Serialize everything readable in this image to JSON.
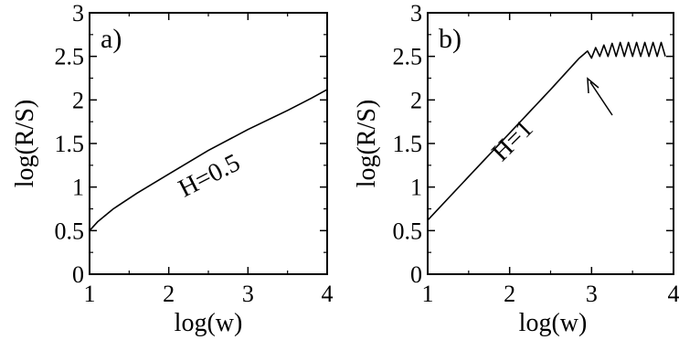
{
  "chart_data": [
    {
      "type": "line",
      "panel_label": "a)",
      "xlabel": "log(w)",
      "ylabel": "log(R/S)",
      "xlim": [
        1,
        4
      ],
      "ylim": [
        0,
        3
      ],
      "xticks": [
        "1",
        "2",
        "3",
        "4"
      ],
      "yticks": [
        "0",
        "0.5",
        "1",
        "1.5",
        "2",
        "2.5",
        "3"
      ],
      "annotation": "H=0.5",
      "grid": false,
      "series": [
        {
          "x": [
            1.0,
            1.1,
            1.3,
            1.6,
            2.0,
            2.5,
            3.0,
            3.5,
            3.8,
            4.0
          ],
          "y": [
            0.5,
            0.6,
            0.75,
            0.93,
            1.15,
            1.42,
            1.66,
            1.88,
            2.02,
            2.12
          ]
        }
      ]
    },
    {
      "type": "line",
      "panel_label": "b)",
      "xlabel": "log(w)",
      "ylabel": "log(R/S)",
      "xlim": [
        1,
        4
      ],
      "ylim": [
        0,
        3
      ],
      "xticks": [
        "1",
        "2",
        "3",
        "4"
      ],
      "yticks": [
        "0",
        "0.5",
        "1",
        "1.5",
        "2",
        "2.5",
        "3"
      ],
      "annotation": "H=1",
      "grid": false,
      "series": [
        {
          "x": [
            1.0,
            1.5,
            2.0,
            2.5,
            2.85,
            2.95,
            3.0,
            3.05,
            3.1,
            3.15,
            3.2,
            3.25,
            3.3,
            3.35,
            3.4,
            3.45,
            3.5,
            3.55,
            3.6,
            3.65,
            3.7,
            3.75,
            3.8,
            3.85,
            3.9
          ],
          "y": [
            0.62,
            1.12,
            1.62,
            2.12,
            2.48,
            2.56,
            2.48,
            2.6,
            2.5,
            2.63,
            2.5,
            2.65,
            2.5,
            2.66,
            2.5,
            2.66,
            2.5,
            2.66,
            2.5,
            2.66,
            2.5,
            2.66,
            2.5,
            2.66,
            2.5
          ]
        }
      ]
    }
  ]
}
